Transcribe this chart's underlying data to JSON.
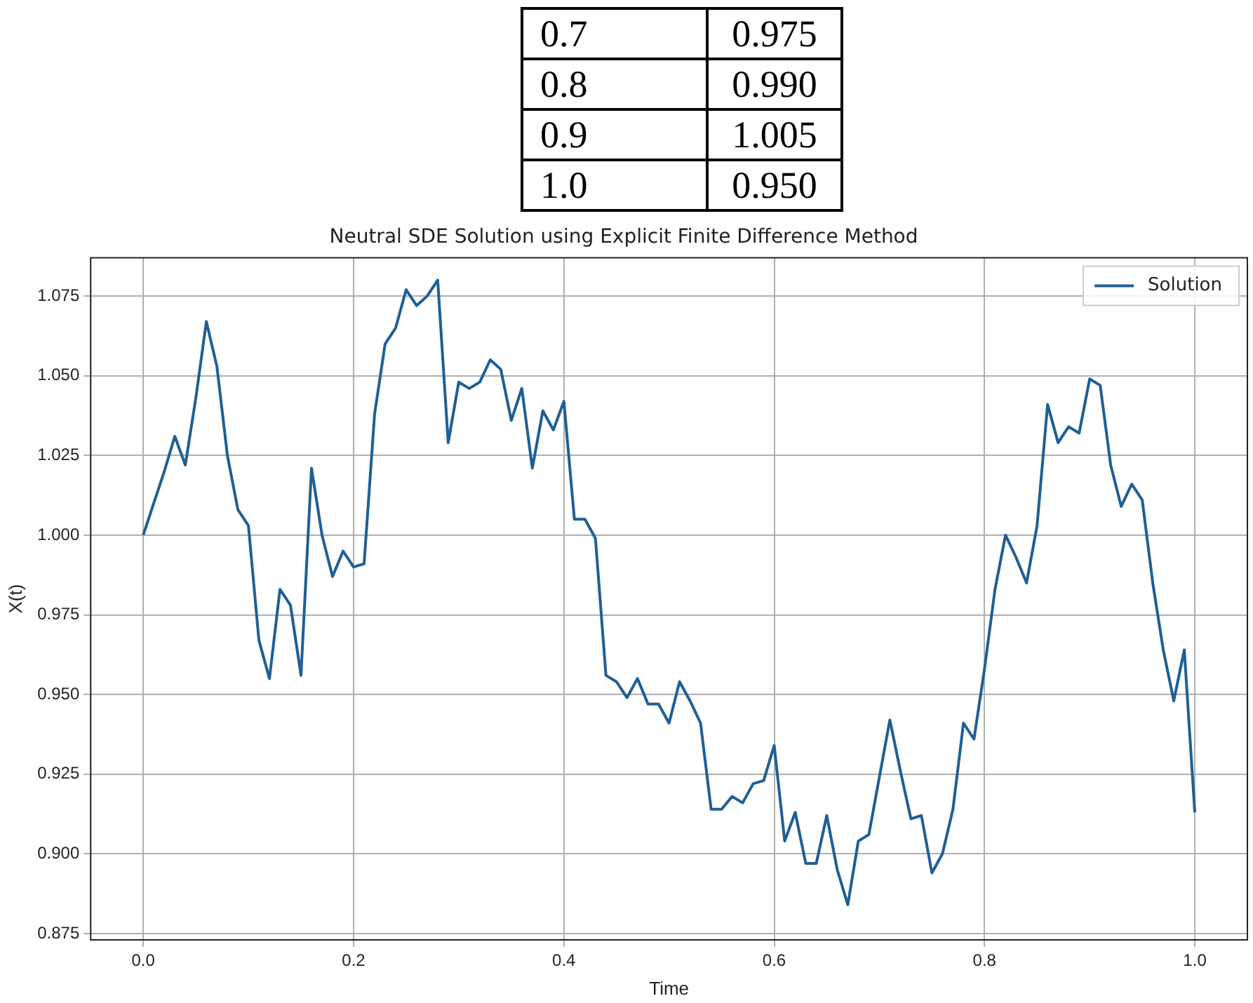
{
  "chart_data": {
    "type": "line",
    "annotations": [
      "0.7",
      "0.975",
      "0.8",
      "0.990",
      "0.9",
      "1.005",
      "1.0",
      "0.950"
    ],
    "title": "Neutral SDE Solution using Explicit Finite Difference Method",
    "xlabel": "Time",
    "ylabel": "X(t)",
    "xlim": [
      -0.05,
      1.05
    ],
    "xticks": [
      {
        "value": 0,
        "label": "0.0"
      },
      {
        "value": 0.2,
        "label": "0.2"
      },
      {
        "value": 0.4,
        "label": "0.4"
      },
      {
        "value": 0.6,
        "label": "0.6"
      },
      {
        "value": 0.8,
        "label": "0.8"
      },
      {
        "value": 1,
        "label": "1.0"
      }
    ],
    "ylim": [
      0.873,
      1.087
    ],
    "yticks": [
      {
        "value": 0.875,
        "label": "0.875"
      },
      {
        "value": 0.9,
        "label": "0.900"
      },
      {
        "value": 0.925,
        "label": "0.925"
      },
      {
        "value": 0.95,
        "label": "0.950"
      },
      {
        "value": 0.975,
        "label": "0.975"
      },
      {
        "value": 1,
        "label": "1.000"
      },
      {
        "value": 1.025,
        "label": "1.025"
      },
      {
        "value": 1.05,
        "label": "1.050"
      },
      {
        "value": 1.075,
        "label": "1.075"
      }
    ],
    "grid": true,
    "legend": "top right",
    "x": [
      0,
      0.01,
      0.02,
      0.03,
      0.04,
      0.05,
      0.06,
      0.07,
      0.08,
      0.09,
      0.1,
      0.11,
      0.12,
      0.13,
      0.14,
      0.15,
      0.16,
      0.17,
      0.18,
      0.19,
      0.2,
      0.21,
      0.22,
      0.23,
      0.24,
      0.25,
      0.26,
      0.27,
      0.28,
      0.29,
      0.3,
      0.31,
      0.32,
      0.33,
      0.34,
      0.35,
      0.36,
      0.37,
      0.38,
      0.39,
      0.4,
      0.41,
      0.42,
      0.43,
      0.44,
      0.45,
      0.46,
      0.47,
      0.48,
      0.49,
      0.5,
      0.51,
      0.52,
      0.53,
      0.54,
      0.55,
      0.56,
      0.57,
      0.58,
      0.59,
      0.6,
      0.61,
      0.62,
      0.63,
      0.64,
      0.65,
      0.66,
      0.67,
      0.68,
      0.69,
      0.71,
      0.72,
      0.73,
      0.74,
      0.75,
      0.76,
      0.77,
      0.78,
      0.79,
      0.8,
      0.81,
      0.82,
      0.83,
      0.84,
      0.85,
      0.86,
      0.87,
      0.88,
      0.89,
      0.9,
      0.91,
      0.92,
      0.93,
      0.94,
      0.95,
      0.96,
      0.97,
      0.98,
      0.99,
      1
    ],
    "series": [
      {
        "name": "Solution",
        "color": "#1f5f96",
        "values": [
          1.0,
          1.01,
          1.02,
          1.031,
          1.022,
          1.043,
          1.067,
          1.053,
          1.025,
          1.008,
          1.003,
          0.967,
          0.955,
          0.983,
          0.978,
          0.956,
          1.021,
          1.0,
          0.987,
          0.995,
          0.99,
          0.991,
          1.038,
          1.06,
          1.065,
          1.077,
          1.072,
          1.075,
          1.08,
          1.029,
          1.048,
          1.046,
          1.048,
          1.055,
          1.052,
          1.036,
          1.046,
          1.021,
          1.039,
          1.033,
          1.042,
          1.005,
          1.005,
          0.999,
          0.956,
          0.954,
          0.949,
          0.955,
          0.947,
          0.947,
          0.941,
          0.954,
          0.948,
          0.941,
          0.914,
          0.914,
          0.918,
          0.916,
          0.922,
          0.923,
          0.934,
          0.904,
          0.913,
          0.897,
          0.897,
          0.912,
          0.895,
          0.884,
          0.904,
          0.906,
          0.942,
          0.926,
          0.911,
          0.912,
          0.894,
          0.9,
          0.914,
          0.941,
          0.936,
          0.958,
          0.983,
          1.0,
          0.993,
          0.985,
          1.003,
          1.041,
          1.029,
          1.034,
          1.032,
          1.049,
          1.047,
          1.022,
          1.009,
          1.016,
          1.011,
          0.985,
          0.964,
          0.948,
          0.964,
          0.913
        ]
      }
    ]
  }
}
